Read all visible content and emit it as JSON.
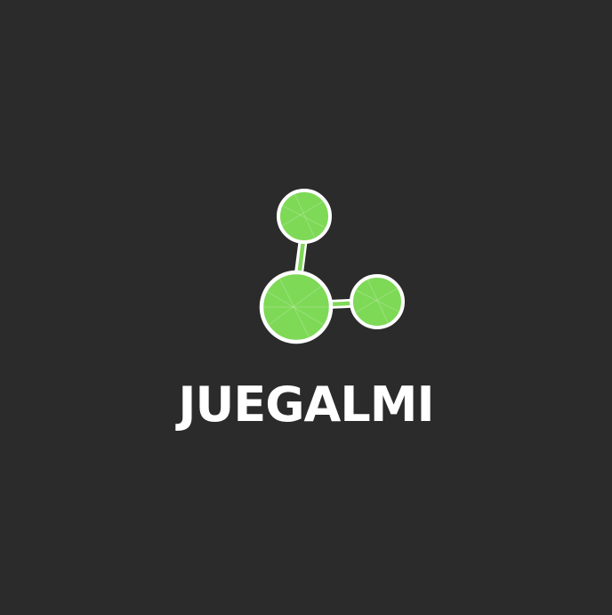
{
  "brand": {
    "name": "JUEGALMI"
  },
  "logo": {
    "icon": "molecule-icon"
  },
  "colors": {
    "background": "#2b2b2b",
    "node_fill": "#7ed957",
    "node_stroke": "#ffffff",
    "text": "#ffffff"
  }
}
